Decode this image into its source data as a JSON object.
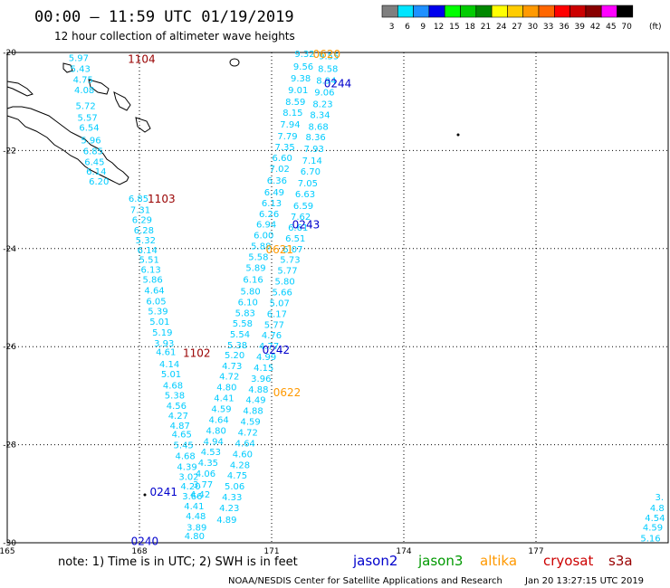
{
  "header": {
    "title": "00:00 – 11:59 UTC 01/19/2019",
    "subtitle": "12 hour collection of altimeter wave heights"
  },
  "colorbar": {
    "unit": "(ft)",
    "ticks": [
      "3",
      "6",
      "9",
      "12",
      "15",
      "18",
      "21",
      "24",
      "27",
      "30",
      "33",
      "36",
      "39",
      "42",
      "45",
      "70"
    ],
    "colors": [
      "#7f7f7f",
      "#00e5ff",
      "#1e90ff",
      "#0000ee",
      "#00ff00",
      "#00cc00",
      "#008800",
      "#ffff00",
      "#ffcc00",
      "#ff9900",
      "#ff6600",
      "#ff0000",
      "#cc0000",
      "#880000",
      "#ff00ff",
      "#000000"
    ]
  },
  "footer": {
    "note": "note:  1) Time is in UTC;  2) SWH is in feet",
    "satellites": [
      {
        "name": "jason2",
        "color": "#0000cc"
      },
      {
        "name": "jason3",
        "color": "#009900"
      },
      {
        "name": "altika",
        "color": "#ff9900"
      },
      {
        "name": "cryosat",
        "color": "#cc0000"
      },
      {
        "name": "s3a",
        "color": "#990000"
      }
    ],
    "credit": "NOAA/NESDIS Center for Satellite Applications and Research",
    "timestamp": "Jan 20 13:27:15 UTC 2019"
  },
  "chart_data": {
    "type": "scatter",
    "title": "00:00 – 11:59 UTC 01/19/2019",
    "subtitle": "12 hour collection of altimeter wave heights",
    "xlabel": "",
    "ylabel": "",
    "xlim": [
      165,
      180
    ],
    "ylim": [
      -30,
      -20
    ],
    "x_ticks": [
      "165",
      "168",
      "171",
      "174",
      "177"
    ],
    "y_ticks": [
      "-20",
      "-22",
      "-24",
      "-26",
      "-28",
      "-30"
    ],
    "grid": true,
    "value_color": "#00ccff",
    "tracks": [
      {
        "satellite": "s3a",
        "pass_time": "1104",
        "label_pos": [
          168.05,
          -20.12
        ],
        "label_color": "#990000",
        "points": [
          [
            166.62,
            -20.1,
            "5.97"
          ],
          [
            166.66,
            -20.32,
            "5.43"
          ],
          [
            166.72,
            -20.54,
            "4.75"
          ],
          [
            166.75,
            -20.76,
            "4.08"
          ],
          [
            166.78,
            -21.08,
            "5.72"
          ],
          [
            166.82,
            -21.32,
            "5.57"
          ],
          [
            166.86,
            -21.52,
            "6.54"
          ],
          [
            166.9,
            -21.78,
            "5.96"
          ],
          [
            166.95,
            -22.0,
            "6.85"
          ],
          [
            166.98,
            -22.22,
            "6.45"
          ],
          [
            167.02,
            -22.42,
            "6.14"
          ],
          [
            167.08,
            -22.62,
            "6.20"
          ]
        ]
      },
      {
        "satellite": "s3a",
        "pass_time": "1103",
        "label_pos": [
          168.5,
          -22.97
        ],
        "label_color": "#990000",
        "points": [
          [
            167.98,
            -22.97,
            "6.85"
          ],
          [
            168.02,
            -23.2,
            "7.31"
          ],
          [
            168.06,
            -23.4,
            "6.29"
          ],
          [
            168.1,
            -23.62,
            "6.28"
          ],
          [
            168.14,
            -23.82,
            "5.32"
          ],
          [
            168.18,
            -24.02,
            "6.14"
          ],
          [
            168.22,
            -24.22,
            "5.51"
          ],
          [
            168.26,
            -24.42,
            "6.13"
          ],
          [
            168.3,
            -24.62,
            "5.86"
          ],
          [
            168.34,
            -24.84,
            "4.64"
          ],
          [
            168.38,
            -25.06,
            "6.05"
          ],
          [
            168.42,
            -25.27,
            "5.39"
          ],
          [
            168.46,
            -25.48,
            "5.01"
          ],
          [
            168.52,
            -25.7,
            "5.19"
          ],
          [
            168.56,
            -25.92,
            "3.93"
          ],
          [
            168.6,
            -26.1,
            "4.61"
          ]
        ]
      },
      {
        "satellite": "s3a",
        "pass_time": "1102",
        "label_pos": [
          169.3,
          -26.12
        ],
        "label_color": "#990000",
        "points": [
          [
            168.68,
            -26.35,
            "4.14"
          ],
          [
            168.72,
            -26.55,
            "5.01"
          ],
          [
            168.76,
            -26.78,
            "4.68"
          ],
          [
            168.8,
            -26.98,
            "5.38"
          ],
          [
            168.84,
            -27.2,
            "4.56"
          ],
          [
            168.88,
            -27.4,
            "4.27"
          ],
          [
            168.92,
            -27.6,
            "4.87"
          ],
          [
            168.96,
            -27.78,
            "4.65"
          ],
          [
            169.0,
            -28.0,
            "5.45"
          ],
          [
            169.04,
            -28.22,
            "4.68"
          ],
          [
            169.08,
            -28.44,
            "4.39"
          ],
          [
            169.12,
            -28.64,
            "3.02"
          ],
          [
            169.16,
            -28.84,
            "4.20"
          ],
          [
            169.2,
            -29.04,
            "3.66"
          ],
          [
            169.24,
            -29.24,
            "4.41"
          ],
          [
            169.28,
            -29.45,
            "4.48"
          ],
          [
            169.3,
            -29.68,
            "3.89"
          ]
        ]
      },
      {
        "satellite": "jason2",
        "pass_time": "0244",
        "label_pos": [
          172.5,
          -20.62
        ],
        "label_color": "#0000cc",
        "points": [
          [
            171.75,
            -20.02,
            "9.32"
          ],
          [
            171.72,
            -20.28,
            "9.56"
          ],
          [
            171.66,
            -20.52,
            "9.38"
          ],
          [
            171.6,
            -20.76,
            "9.01"
          ],
          [
            171.54,
            -21.0,
            "8.59"
          ],
          [
            171.48,
            -21.22,
            "8.15"
          ],
          [
            171.42,
            -21.46,
            "7.94"
          ],
          [
            171.36,
            -21.7,
            "7.79"
          ],
          [
            171.3,
            -21.92,
            "7.35"
          ],
          [
            171.24,
            -22.14,
            "6.60"
          ],
          [
            171.18,
            -22.36,
            "7.02"
          ],
          [
            171.12,
            -22.6,
            "6.36"
          ]
        ]
      },
      {
        "satellite": "jason2",
        "pass_time": "0243",
        "label_pos": [
          171.78,
          -23.5
        ],
        "label_color": "#0000cc",
        "points": [
          [
            171.06,
            -22.84,
            "6.49"
          ],
          [
            171.0,
            -23.06,
            "6.13"
          ],
          [
            170.94,
            -23.28,
            "6.26"
          ],
          [
            170.88,
            -23.5,
            "6.94"
          ],
          [
            170.82,
            -23.72,
            "6.00"
          ],
          [
            170.76,
            -23.94,
            "5.88"
          ],
          [
            170.7,
            -24.16,
            "5.58"
          ],
          [
            170.64,
            -24.38,
            "5.89"
          ],
          [
            170.58,
            -24.62,
            "6.16"
          ],
          [
            170.52,
            -24.86,
            "5.80"
          ],
          [
            170.46,
            -25.08,
            "6.10"
          ],
          [
            170.4,
            -25.3,
            "5.83"
          ],
          [
            170.34,
            -25.52,
            "5.58"
          ],
          [
            170.28,
            -25.74,
            "5.54"
          ],
          [
            170.22,
            -25.96,
            "5.38"
          ]
        ]
      },
      {
        "satellite": "jason2",
        "pass_time": "0242",
        "label_pos": [
          171.1,
          -26.05
        ],
        "label_color": "#0000cc",
        "points": [
          [
            170.16,
            -26.16,
            "5.20"
          ],
          [
            170.1,
            -26.38,
            "4.73"
          ],
          [
            170.04,
            -26.6,
            "4.72"
          ],
          [
            169.98,
            -26.82,
            "4.80"
          ],
          [
            169.92,
            -27.04,
            "4.41"
          ],
          [
            169.86,
            -27.26,
            "4.59"
          ],
          [
            169.8,
            -27.48,
            "4.64"
          ],
          [
            169.74,
            -27.7,
            "4.80"
          ],
          [
            169.68,
            -27.92,
            "4.94"
          ],
          [
            169.62,
            -28.14,
            "4.53"
          ],
          [
            169.56,
            -28.36,
            "4.35"
          ],
          [
            169.5,
            -28.58,
            "4.06"
          ],
          [
            169.44,
            -28.8,
            "3.77"
          ],
          [
            169.38,
            -29.0,
            "4.42"
          ]
        ]
      },
      {
        "satellite": "jason2",
        "pass_time": "0241",
        "label_pos": [
          168.55,
          -28.95
        ],
        "label_color": "#0000cc",
        "points": []
      },
      {
        "satellite": "jason2",
        "pass_time": "0240",
        "label_pos": [
          168.12,
          -29.95
        ],
        "label_color": "#0000cc",
        "points": [
          [
            169.25,
            -29.85,
            "4.80"
          ]
        ]
      },
      {
        "satellite": "altika",
        "pass_time": "0620",
        "label_pos": [
          172.25,
          -20.02
        ],
        "label_color": "#ff9900",
        "points": [
          [
            172.3,
            -20.06,
            "9.55"
          ],
          [
            172.28,
            -20.32,
            "8.58"
          ],
          [
            172.24,
            -20.56,
            "8.94"
          ],
          [
            172.2,
            -20.8,
            "9.06"
          ],
          [
            172.16,
            -21.04,
            "8.23"
          ],
          [
            172.1,
            -21.26,
            "8.34"
          ],
          [
            172.06,
            -21.5,
            "8.68"
          ],
          [
            172.0,
            -21.72,
            "8.36"
          ],
          [
            171.96,
            -21.96,
            "7.93"
          ],
          [
            171.92,
            -22.2,
            "7.14"
          ],
          [
            171.88,
            -22.42,
            "6.70"
          ],
          [
            171.82,
            -22.66,
            "7.05"
          ],
          [
            171.76,
            -22.88,
            "6.63"
          ],
          [
            171.72,
            -23.12,
            "6.59"
          ],
          [
            171.66,
            -23.34,
            "7.62"
          ]
        ]
      },
      {
        "satellite": "altika",
        "pass_time": "0621",
        "label_pos": [
          171.18,
          -24.0
        ],
        "label_color": "#ff9900",
        "points": [
          [
            171.6,
            -23.56,
            "6.61"
          ],
          [
            171.54,
            -23.78,
            "6.51"
          ],
          [
            171.48,
            -24.0,
            "6.07"
          ],
          [
            171.42,
            -24.22,
            "5.73"
          ],
          [
            171.36,
            -24.44,
            "5.77"
          ],
          [
            171.3,
            -24.66,
            "5.80"
          ],
          [
            171.24,
            -24.88,
            "5.66"
          ],
          [
            171.18,
            -25.1,
            "5.07"
          ],
          [
            171.12,
            -25.32,
            "6.17"
          ],
          [
            171.06,
            -25.54,
            "5.77"
          ],
          [
            171.0,
            -25.76,
            "4.76"
          ],
          [
            170.94,
            -25.98,
            "4.77"
          ],
          [
            170.88,
            -26.2,
            "4.99"
          ],
          [
            170.82,
            -26.42,
            "4.15"
          ],
          [
            170.76,
            -26.64,
            "3.96"
          ],
          [
            170.7,
            -26.86,
            "4.88"
          ]
        ]
      },
      {
        "satellite": "altika",
        "pass_time": "0622",
        "label_pos": [
          171.35,
          -26.92
        ],
        "label_color": "#ff9900",
        "points": [
          [
            170.64,
            -27.08,
            "4.49"
          ],
          [
            170.58,
            -27.3,
            "4.88"
          ],
          [
            170.52,
            -27.52,
            "4.59"
          ],
          [
            170.46,
            -27.74,
            "4.72"
          ],
          [
            170.4,
            -27.96,
            "4.64"
          ],
          [
            170.34,
            -28.18,
            "4.60"
          ],
          [
            170.28,
            -28.4,
            "4.28"
          ],
          [
            170.22,
            -28.62,
            "4.75"
          ],
          [
            170.16,
            -28.84,
            "5.06"
          ],
          [
            170.1,
            -29.06,
            "4.33"
          ],
          [
            170.04,
            -29.28,
            "4.23"
          ],
          [
            169.98,
            -29.52,
            "4.89"
          ]
        ]
      },
      {
        "satellite": "s3a",
        "pass_time": "",
        "label_pos": [
          180.0,
          -29.0
        ],
        "label_color": "#990000",
        "points": [
          [
            179.8,
            -29.06,
            "3."
          ],
          [
            179.75,
            -29.28,
            "4.8"
          ],
          [
            179.7,
            -29.48,
            "4.54"
          ],
          [
            179.65,
            -29.68,
            "4.59"
          ],
          [
            179.6,
            -29.9,
            "5.16"
          ]
        ]
      }
    ]
  }
}
